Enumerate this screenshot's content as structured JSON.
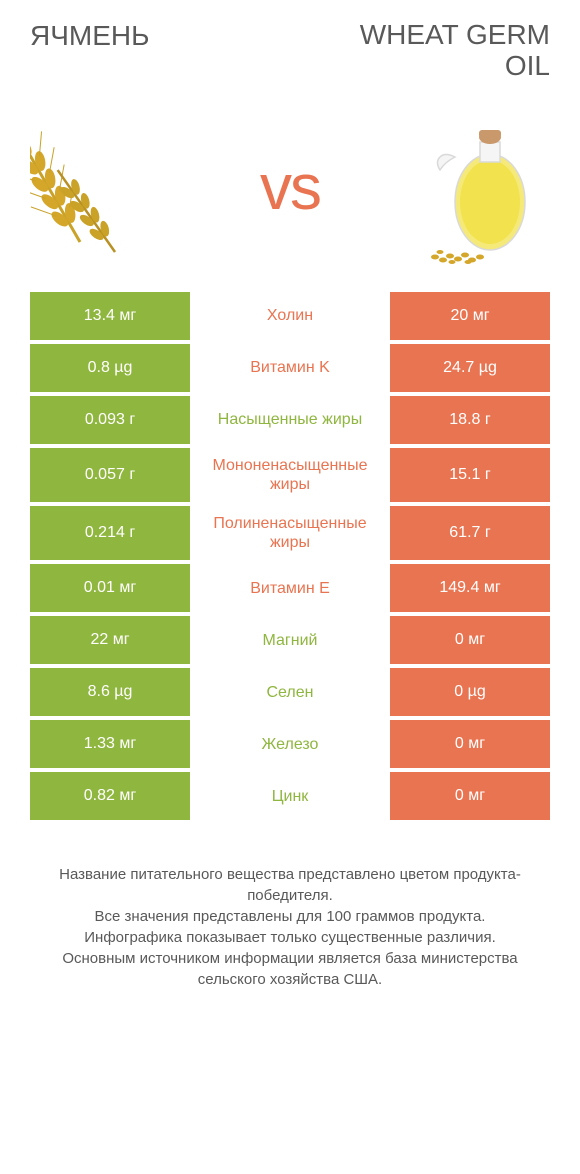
{
  "header": {
    "left_title": "Ячмень",
    "right_title": "Wheat germ oil",
    "vs": "vs"
  },
  "colors": {
    "green": "#8fb63f",
    "orange": "#e97451",
    "mid_green": "#8fb63f",
    "mid_orange": "#e97451",
    "text_gray": "#595959"
  },
  "rows": [
    {
      "left": "13.4 мг",
      "mid": "Холин",
      "right": "20 мг",
      "winner": "right"
    },
    {
      "left": "0.8 µg",
      "mid": "Витамин K",
      "right": "24.7 µg",
      "winner": "right"
    },
    {
      "left": "0.093 г",
      "mid": "Насыщенные жиры",
      "right": "18.8 г",
      "winner": "left"
    },
    {
      "left": "0.057 г",
      "mid": "Мононенасыщенные жиры",
      "right": "15.1 г",
      "winner": "right"
    },
    {
      "left": "0.214 г",
      "mid": "Полиненасыщенные жиры",
      "right": "61.7 г",
      "winner": "right"
    },
    {
      "left": "0.01 мг",
      "mid": "Витамин E",
      "right": "149.4 мг",
      "winner": "right"
    },
    {
      "left": "22 мг",
      "mid": "Магний",
      "right": "0 мг",
      "winner": "left"
    },
    {
      "left": "8.6 µg",
      "mid": "Селен",
      "right": "0 µg",
      "winner": "left"
    },
    {
      "left": "1.33 мг",
      "mid": "Железо",
      "right": "0 мг",
      "winner": "left"
    },
    {
      "left": "0.82 мг",
      "mid": "Цинк",
      "right": "0 мг",
      "winner": "left"
    }
  ],
  "footer": {
    "line1": "Название питательного вещества представлено цветом продукта-победителя.",
    "line2": "Все значения представлены для 100 граммов продукта.",
    "line3": "Инфографика показывает только существенные различия.",
    "line4": "Основным источником информации является база министерства сельского хозяйства США."
  }
}
